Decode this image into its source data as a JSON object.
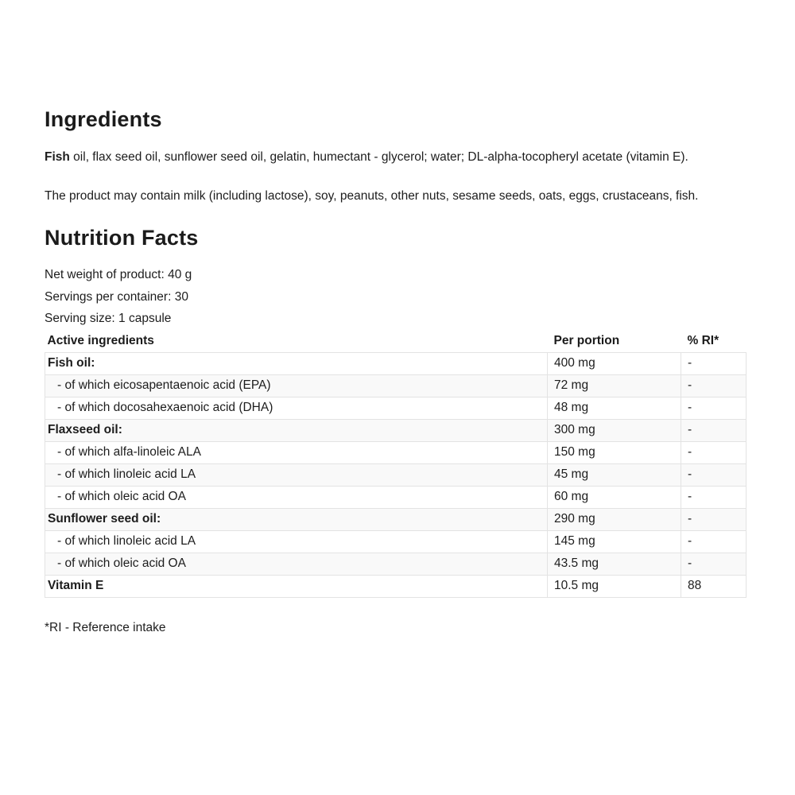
{
  "colors": {
    "text": "#1d1d1d",
    "table_border": "#e3e3e3",
    "row_stripe": "#f9f9f9",
    "background": "#ffffff"
  },
  "ingredients": {
    "heading": "Ingredients",
    "lead_bold": "Fish",
    "body": " oil, flax seed oil, sunflower seed oil, gelatin, humectant - glycerol; water; DL-alpha-tocopheryl acetate (vitamin E).",
    "allergen_note": "The product may contain milk (including lactose), soy, peanuts, other nuts, sesame seeds, oats, eggs, crustaceans, fish."
  },
  "nutrition": {
    "heading": "Nutrition Facts",
    "net_weight": "Net weight of product: 40 g",
    "servings_per_container": "Servings per container: 30",
    "serving_size": "Serving size: 1 capsule",
    "table": {
      "columns": [
        "Active ingredients",
        "Per portion",
        "% RI*"
      ],
      "rows": [
        {
          "label": "Fish oil:",
          "per_portion": "400 mg",
          "ri": "-"
        },
        {
          "label": "- of which eicosapentaenoic acid (EPA)",
          "per_portion": "72 mg",
          "ri": "-"
        },
        {
          "label": "- of which docosahexaenoic acid (DHA)",
          "per_portion": "48 mg",
          "ri": "-"
        },
        {
          "label": "Flaxseed oil:",
          "per_portion": "300 mg",
          "ri": "-"
        },
        {
          "label": "- of which alfa-linoleic ALA",
          "per_portion": "150 mg",
          "ri": "-"
        },
        {
          "label": "- of which linoleic acid LA",
          "per_portion": "45 mg",
          "ri": "-"
        },
        {
          "label": "- of which oleic acid OA",
          "per_portion": "60 mg",
          "ri": "-"
        },
        {
          "label": "Sunflower seed oil:",
          "per_portion": "290 mg",
          "ri": "-"
        },
        {
          "label": "- of which linoleic acid LA",
          "per_portion": "145 mg",
          "ri": "-"
        },
        {
          "label": "- of which oleic acid OA",
          "per_portion": "43.5 mg",
          "ri": "-"
        },
        {
          "label": "Vitamin E",
          "per_portion": "10.5 mg",
          "ri": "88"
        }
      ]
    },
    "footnote": "*RI - Reference intake"
  }
}
